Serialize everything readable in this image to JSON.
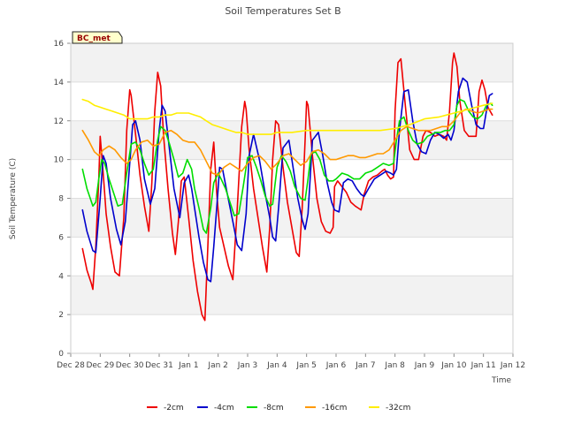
{
  "chart_data": {
    "type": "line",
    "title": "Soil Temperatures Set B",
    "xlabel": "Time",
    "ylabel": "Soil Temperature (C)",
    "badge": "BC_met",
    "ylim": [
      0,
      16
    ],
    "yticks": [
      0,
      2,
      4,
      6,
      8,
      10,
      12,
      14,
      16
    ],
    "xlim": [
      0,
      15
    ],
    "xticks": [
      {
        "t": 0,
        "label": "Dec 28"
      },
      {
        "t": 1,
        "label": "Dec 29"
      },
      {
        "t": 2,
        "label": "Dec 30"
      },
      {
        "t": 3,
        "label": "Dec 31"
      },
      {
        "t": 4,
        "label": "Jan 1"
      },
      {
        "t": 5,
        "label": "Jan 2"
      },
      {
        "t": 6,
        "label": "Jan 3"
      },
      {
        "t": 7,
        "label": "Jan 4"
      },
      {
        "t": 8,
        "label": "Jan 5"
      },
      {
        "t": 9,
        "label": "Jan 6"
      },
      {
        "t": 10,
        "label": "Jan 7"
      },
      {
        "t": 11,
        "label": "Jan 8"
      },
      {
        "t": 12,
        "label": "Jan 9"
      },
      {
        "t": 13,
        "label": "Jan 10"
      },
      {
        "t": 14,
        "label": "Jan 11"
      },
      {
        "t": 15,
        "label": "Jan 12"
      }
    ],
    "x_unit": "days since Dec 28",
    "grid": "horizontal bands",
    "legend_position": "bottom",
    "series": [
      {
        "name": "-2cm",
        "color": "#ee0000",
        "x": [
          0.4,
          0.55,
          0.7,
          0.75,
          0.85,
          0.95,
          1.0,
          1.1,
          1.2,
          1.35,
          1.5,
          1.65,
          1.8,
          1.9,
          2.0,
          2.05,
          2.2,
          2.35,
          2.5,
          2.65,
          2.75,
          2.85,
          2.95,
          3.05,
          3.15,
          3.3,
          3.45,
          3.55,
          3.65,
          3.75,
          3.85,
          4.0,
          4.15,
          4.3,
          4.45,
          4.55,
          4.65,
          4.75,
          4.85,
          4.95,
          5.05,
          5.2,
          5.35,
          5.5,
          5.65,
          5.8,
          5.9,
          5.95,
          6.05,
          6.2,
          6.35,
          6.5,
          6.65,
          6.75,
          6.85,
          6.95,
          7.05,
          7.2,
          7.35,
          7.5,
          7.65,
          7.75,
          7.85,
          7.95,
          8.0,
          8.05,
          8.2,
          8.35,
          8.5,
          8.65,
          8.8,
          8.9,
          8.95,
          9.05,
          9.2,
          9.35,
          9.5,
          9.65,
          9.75,
          9.85,
          9.95,
          10.1,
          10.25,
          10.4,
          10.55,
          10.65,
          10.75,
          10.85,
          10.95,
          11.0,
          11.1,
          11.2,
          11.35,
          11.5,
          11.65,
          11.8,
          11.95,
          12.05,
          12.2,
          12.35,
          12.5,
          12.65,
          12.75,
          12.85,
          12.95,
          13.0,
          13.1,
          13.2,
          13.35,
          13.5,
          13.65,
          13.75,
          13.85,
          13.95,
          14.05,
          14.15,
          14.3
        ],
        "y": [
          5.4,
          4.3,
          3.6,
          3.3,
          5.5,
          9.0,
          11.2,
          9.3,
          7.2,
          5.5,
          4.2,
          4.0,
          7.0,
          11.5,
          13.6,
          13.3,
          11.3,
          9.2,
          7.6,
          6.3,
          8.8,
          12.5,
          14.5,
          13.8,
          11.2,
          8.5,
          6.2,
          5.1,
          6.8,
          8.9,
          9.1,
          7.0,
          4.8,
          3.2,
          2.0,
          1.7,
          5.5,
          9.5,
          10.9,
          8.3,
          6.5,
          5.5,
          4.5,
          3.8,
          7.5,
          11.7,
          13.0,
          12.6,
          10.5,
          8.5,
          7.0,
          5.5,
          4.2,
          6.5,
          10.0,
          12.0,
          11.8,
          9.6,
          7.8,
          6.5,
          5.2,
          5.0,
          7.5,
          11.0,
          13.0,
          12.8,
          10.2,
          8.0,
          6.8,
          6.3,
          6.2,
          6.5,
          8.6,
          8.9,
          8.6,
          8.3,
          7.8,
          7.6,
          7.5,
          7.4,
          8.2,
          8.9,
          9.1,
          9.2,
          9.4,
          9.5,
          9.2,
          9.0,
          9.1,
          12.5,
          15.0,
          15.2,
          12.8,
          10.5,
          10.0,
          10.0,
          11.2,
          11.5,
          11.4,
          11.2,
          11.3,
          11.2,
          11.0,
          12.5,
          15.0,
          15.5,
          14.8,
          13.0,
          11.5,
          11.2,
          11.2,
          11.2,
          13.5,
          14.1,
          13.6,
          12.7,
          12.3
        ]
      },
      {
        "name": "-4cm",
        "color": "#0000cc",
        "x": [
          0.4,
          0.55,
          0.75,
          0.85,
          1.0,
          1.1,
          1.2,
          1.35,
          1.55,
          1.7,
          1.85,
          2.0,
          2.1,
          2.2,
          2.35,
          2.5,
          2.7,
          2.85,
          3.0,
          3.1,
          3.2,
          3.35,
          3.5,
          3.7,
          3.85,
          4.0,
          4.1,
          4.2,
          4.35,
          4.5,
          4.65,
          4.75,
          4.85,
          5.0,
          5.05,
          5.15,
          5.3,
          5.5,
          5.65,
          5.8,
          5.95,
          6.05,
          6.2,
          6.4,
          6.6,
          6.75,
          6.85,
          6.95,
          7.05,
          7.2,
          7.4,
          7.55,
          7.7,
          7.85,
          7.95,
          8.05,
          8.2,
          8.4,
          8.55,
          8.7,
          8.85,
          8.95,
          9.1,
          9.25,
          9.4,
          9.55,
          9.7,
          9.85,
          9.95,
          10.1,
          10.3,
          10.5,
          10.7,
          10.85,
          10.95,
          11.05,
          11.15,
          11.3,
          11.45,
          11.6,
          11.75,
          11.9,
          12.05,
          12.2,
          12.35,
          12.5,
          12.65,
          12.8,
          12.9,
          13.0,
          13.15,
          13.3,
          13.45,
          13.6,
          13.75,
          13.9,
          14.0,
          14.1,
          14.2,
          14.3
        ],
        "y": [
          7.4,
          6.3,
          5.3,
          5.2,
          8.0,
          10.2,
          9.8,
          8.0,
          6.4,
          5.6,
          6.8,
          9.8,
          11.8,
          12.0,
          11.0,
          9.0,
          7.7,
          8.5,
          11.5,
          12.8,
          12.5,
          10.5,
          8.5,
          7.0,
          8.8,
          9.2,
          8.5,
          7.5,
          6.0,
          4.7,
          3.8,
          3.7,
          5.5,
          8.5,
          9.6,
          9.5,
          8.3,
          6.8,
          5.6,
          5.3,
          7.2,
          10.2,
          11.3,
          10.0,
          8.2,
          7.0,
          6.0,
          5.8,
          7.5,
          10.6,
          11.0,
          9.5,
          8.0,
          6.9,
          6.4,
          7.2,
          11.0,
          11.4,
          10.2,
          8.8,
          7.8,
          7.4,
          7.3,
          8.8,
          9.0,
          8.9,
          8.5,
          8.2,
          8.1,
          8.5,
          9.0,
          9.2,
          9.4,
          9.3,
          9.2,
          9.5,
          11.5,
          13.5,
          13.6,
          12.0,
          10.8,
          10.4,
          10.3,
          11.0,
          11.4,
          11.3,
          11.1,
          11.3,
          11.0,
          11.5,
          13.5,
          14.2,
          14.0,
          12.8,
          11.8,
          11.6,
          11.6,
          12.5,
          13.3,
          13.4
        ]
      },
      {
        "name": "-8cm",
        "color": "#00dd00",
        "x": [
          0.4,
          0.55,
          0.75,
          0.85,
          0.95,
          1.05,
          1.15,
          1.3,
          1.45,
          1.6,
          1.75,
          1.9,
          2.05,
          2.2,
          2.35,
          2.5,
          2.65,
          2.8,
          2.95,
          3.05,
          3.2,
          3.35,
          3.5,
          3.65,
          3.8,
          3.95,
          4.1,
          4.2,
          4.35,
          4.5,
          4.6,
          4.75,
          4.85,
          5.0,
          5.1,
          5.25,
          5.4,
          5.55,
          5.7,
          5.85,
          6.0,
          6.15,
          6.3,
          6.45,
          6.6,
          6.75,
          6.85,
          7.0,
          7.15,
          7.3,
          7.45,
          7.6,
          7.8,
          7.95,
          8.05,
          8.15,
          8.3,
          8.45,
          8.6,
          8.75,
          8.9,
          9.0,
          9.2,
          9.4,
          9.6,
          9.8,
          10.0,
          10.2,
          10.4,
          10.6,
          10.8,
          10.95,
          11.05,
          11.15,
          11.3,
          11.45,
          11.6,
          11.75,
          11.95,
          12.1,
          12.25,
          12.4,
          12.55,
          12.7,
          12.85,
          13.0,
          13.1,
          13.2,
          13.35,
          13.5,
          13.65,
          13.8,
          13.95,
          14.1,
          14.25,
          14.3
        ],
        "y": [
          9.5,
          8.5,
          7.6,
          7.8,
          9.0,
          10.0,
          9.8,
          9.0,
          8.3,
          7.6,
          7.7,
          9.3,
          10.8,
          10.9,
          10.5,
          9.8,
          9.2,
          9.5,
          11.0,
          11.7,
          11.5,
          10.8,
          10.0,
          9.1,
          9.3,
          10.0,
          9.5,
          8.5,
          7.5,
          6.4,
          6.2,
          7.5,
          8.8,
          9.3,
          9.0,
          8.5,
          7.8,
          7.1,
          7.2,
          8.6,
          10.1,
          10.2,
          9.6,
          8.9,
          8.1,
          7.6,
          7.7,
          9.6,
          10.2,
          9.9,
          9.4,
          8.6,
          8.0,
          7.9,
          9.0,
          10.3,
          10.4,
          10.0,
          9.2,
          8.9,
          8.9,
          9.0,
          9.3,
          9.2,
          9.0,
          9.0,
          9.3,
          9.4,
          9.6,
          9.8,
          9.7,
          9.8,
          11.0,
          12.0,
          12.2,
          11.5,
          11.0,
          10.8,
          10.9,
          11.2,
          11.3,
          11.4,
          11.4,
          11.5,
          11.5,
          11.8,
          12.8,
          13.1,
          13.0,
          12.5,
          12.2,
          12.1,
          12.3,
          12.8,
          12.9,
          12.8
        ]
      },
      {
        "name": "-16cm",
        "color": "#ff9900",
        "x": [
          0.4,
          0.6,
          0.8,
          0.95,
          1.1,
          1.3,
          1.5,
          1.7,
          1.9,
          2.05,
          2.2,
          2.4,
          2.6,
          2.8,
          3.0,
          3.2,
          3.4,
          3.6,
          3.8,
          4.0,
          4.2,
          4.4,
          4.6,
          4.8,
          5.0,
          5.2,
          5.4,
          5.6,
          5.8,
          6.0,
          6.2,
          6.4,
          6.6,
          6.8,
          7.0,
          7.2,
          7.4,
          7.6,
          7.8,
          8.0,
          8.2,
          8.4,
          8.6,
          8.8,
          9.0,
          9.2,
          9.4,
          9.6,
          9.8,
          10.0,
          10.2,
          10.4,
          10.6,
          10.8,
          11.0,
          11.2,
          11.4,
          11.6,
          11.8,
          12.0,
          12.2,
          12.4,
          12.6,
          12.8,
          13.0,
          13.2,
          13.4,
          13.6,
          13.8,
          14.0,
          14.2,
          14.3
        ],
        "y": [
          11.5,
          11.0,
          10.4,
          10.2,
          10.5,
          10.7,
          10.5,
          10.1,
          9.8,
          10.0,
          10.5,
          10.9,
          11.0,
          10.7,
          10.8,
          11.4,
          11.5,
          11.3,
          11.0,
          10.9,
          10.9,
          10.5,
          9.9,
          9.3,
          9.2,
          9.6,
          9.8,
          9.6,
          9.4,
          9.8,
          10.1,
          10.2,
          9.9,
          9.5,
          9.8,
          10.2,
          10.3,
          10.0,
          9.7,
          9.9,
          10.4,
          10.5,
          10.3,
          10.0,
          10.0,
          10.1,
          10.2,
          10.2,
          10.1,
          10.1,
          10.2,
          10.3,
          10.3,
          10.5,
          11.0,
          11.5,
          11.7,
          11.6,
          11.5,
          11.5,
          11.5,
          11.6,
          11.7,
          11.7,
          12.0,
          12.4,
          12.6,
          12.5,
          12.4,
          12.5,
          12.6,
          12.6
        ]
      },
      {
        "name": "-32cm",
        "color": "#ffee00",
        "x": [
          0.4,
          0.6,
          0.8,
          1.0,
          1.2,
          1.4,
          1.6,
          1.8,
          2.0,
          2.2,
          2.4,
          2.6,
          2.8,
          3.0,
          3.2,
          3.4,
          3.6,
          3.8,
          4.0,
          4.2,
          4.4,
          4.6,
          4.8,
          5.0,
          5.2,
          5.4,
          5.6,
          5.8,
          6.0,
          6.2,
          6.4,
          6.6,
          6.8,
          7.0,
          7.5,
          8.0,
          8.5,
          9.0,
          9.5,
          10.0,
          10.5,
          11.0,
          11.5,
          12.0,
          12.5,
          13.0,
          13.5,
          14.0,
          14.3
        ],
        "y": [
          13.1,
          13.0,
          12.8,
          12.7,
          12.6,
          12.5,
          12.4,
          12.3,
          12.1,
          12.1,
          12.1,
          12.1,
          12.2,
          12.2,
          12.3,
          12.3,
          12.4,
          12.4,
          12.4,
          12.3,
          12.2,
          12.0,
          11.8,
          11.7,
          11.6,
          11.5,
          11.4,
          11.4,
          11.3,
          11.3,
          11.3,
          11.3,
          11.3,
          11.4,
          11.4,
          11.5,
          11.5,
          11.5,
          11.5,
          11.5,
          11.5,
          11.6,
          11.8,
          12.1,
          12.2,
          12.4,
          12.6,
          12.8,
          12.9
        ]
      }
    ]
  }
}
